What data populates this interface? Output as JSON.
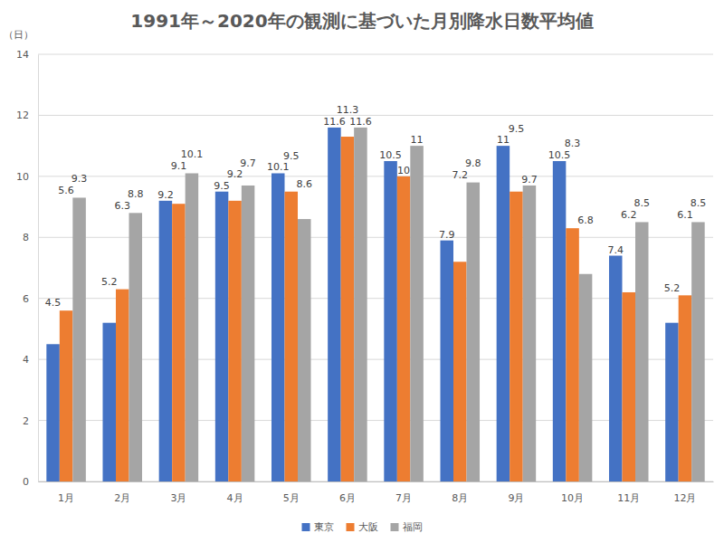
{
  "chart_data": {
    "type": "bar",
    "title": "1991年～2020年の観測に基づいた月別降水日数平均値",
    "y_label": "（日）",
    "categories": [
      "1月",
      "2月",
      "3月",
      "4月",
      "5月",
      "6月",
      "7月",
      "8月",
      "9月",
      "10月",
      "11月",
      "12月"
    ],
    "series": [
      {
        "name": "東京",
        "color": "#4472c4",
        "values": [
          4.5,
          5.2,
          9.2,
          9.5,
          10.1,
          11.6,
          10.5,
          7.9,
          11,
          10.5,
          7.4,
          5.2
        ]
      },
      {
        "name": "大阪",
        "color": "#ed7d31",
        "values": [
          5.6,
          6.3,
          9.1,
          9.2,
          9.5,
          11.3,
          10,
          7.2,
          9.5,
          8.3,
          6.2,
          6.1
        ]
      },
      {
        "name": "福岡",
        "color": "#a5a5a5",
        "values": [
          9.3,
          8.8,
          10.1,
          9.7,
          8.6,
          11.6,
          11,
          9.8,
          9.7,
          6.8,
          8.5,
          8.5
        ]
      }
    ],
    "ylim": [
      0,
      14
    ],
    "yticks": [
      0,
      2,
      4,
      6,
      8,
      10,
      12,
      14
    ],
    "grid": true,
    "legend": "bottom",
    "data_labels": true
  }
}
